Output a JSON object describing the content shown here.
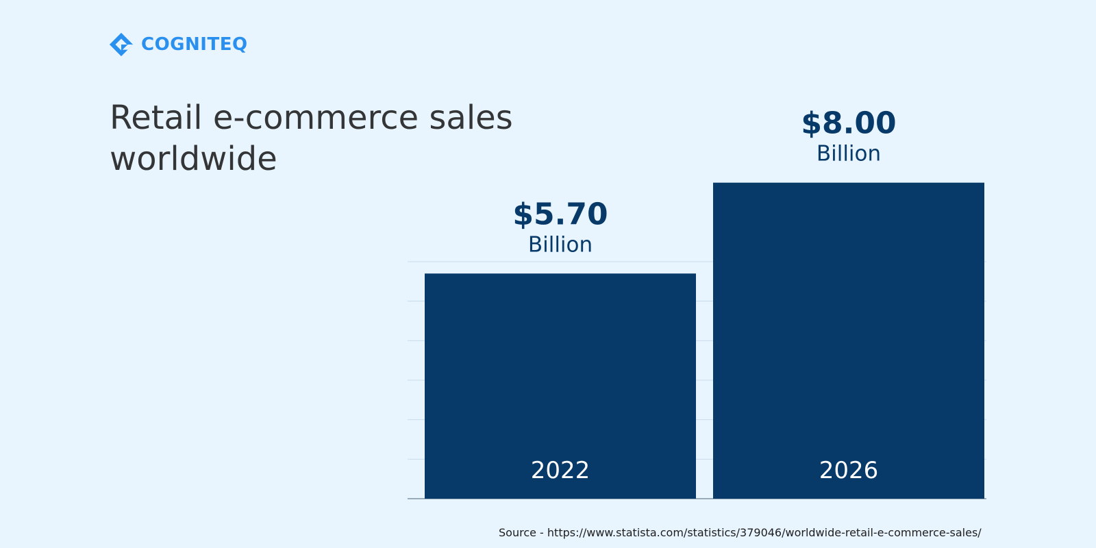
{
  "brand": {
    "name": "COGNITEQ",
    "color": "#2a90f0",
    "icon": "cogniteq-logo-icon"
  },
  "title": "Retail e-commerce sales worldwide",
  "source": "Source - https://www.statista.com/statistics/379046/worldwide-retail-e-commerce-sales/",
  "chart_data": {
    "type": "bar",
    "categories": [
      "2022",
      "2026"
    ],
    "values": [
      5.7,
      8.0
    ],
    "value_labels": [
      "$5.70",
      "$8.00"
    ],
    "unit_label": "Billion",
    "ylim": [
      0,
      9
    ],
    "grid": true,
    "bar_color": "#073a69",
    "value_color": "#073a69",
    "category_label_color": "#ffffff"
  }
}
